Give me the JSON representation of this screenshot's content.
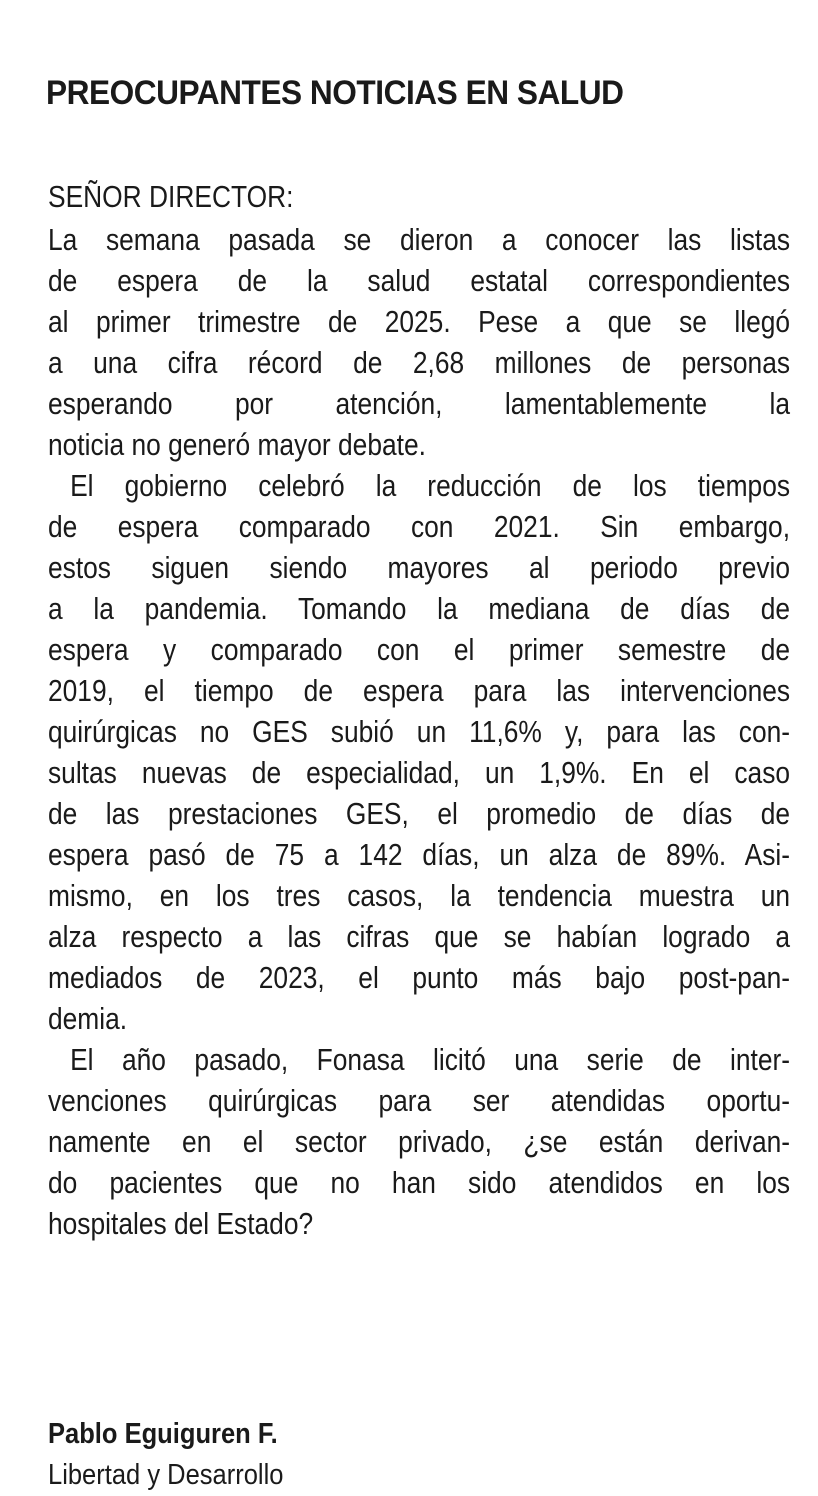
{
  "headline": "PREOCUPANTES NOTICIAS EN SALUD",
  "salutation": "SEÑOR DIRECTOR:",
  "paragraphs": [
    {
      "lines": [
        "La semana pasada se dieron a conocer las listas",
        "de espera de la salud estatal correspondientes",
        "al primer trimestre de 2025. Pese a que se llegó",
        "a una cifra récord de 2,68 millones de personas",
        "esperando por atención, lamentablemente la",
        "noticia no generó mayor debate."
      ]
    },
    {
      "lines": [
        "El gobierno celebró la reducción de los tiempos",
        "de espera comparado con 2021. Sin embargo,",
        "estos siguen siendo mayores al periodo previo",
        "a la pandemia. Tomando la mediana de días de",
        "espera y comparado con el primer semestre de",
        "2019, el tiempo de espera para las intervenciones",
        "quirúrgicas no GES subió un 11,6% y, para las con-",
        "sultas nuevas de especialidad, un 1,9%. En el caso",
        "de las prestaciones GES, el promedio de días de",
        "espera pasó de 75 a 142 días, un alza de 89%. Asi-",
        "mismo, en los tres casos, la tendencia muestra un",
        "alza respecto a las cifras que se habían logrado a",
        "mediados de 2023, el punto más bajo post-pan-",
        "demia."
      ]
    },
    {
      "lines": [
        "El año pasado, Fonasa licitó una serie de inter-",
        "venciones quirúrgicas para ser atendidas oportu-",
        "namente en el sector privado, ¿se están derivan-",
        "do pacientes que no han sido atendidos en los",
        "hospitales del Estado?"
      ]
    }
  ],
  "signature": {
    "name": "Pablo Eguiguren F.",
    "organization": "Libertad y Desarrollo"
  }
}
